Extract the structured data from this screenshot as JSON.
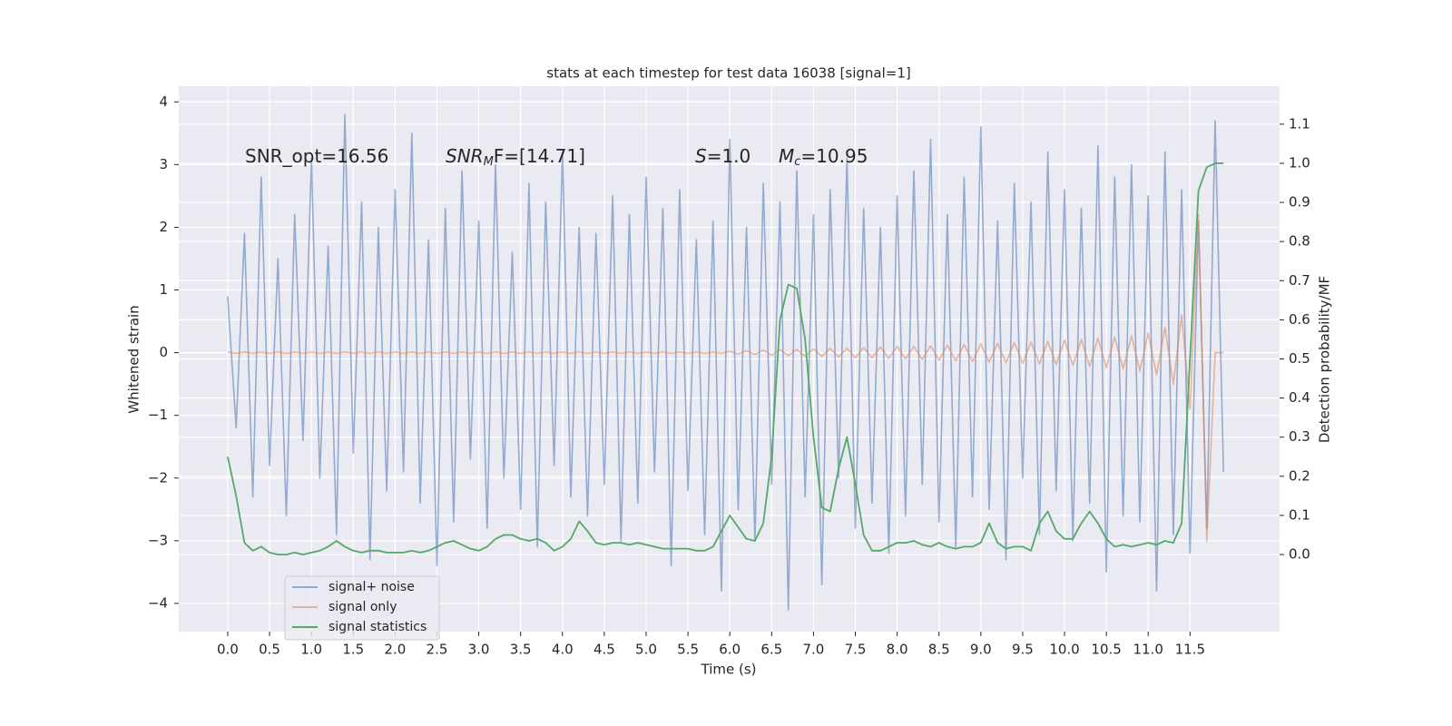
{
  "chart_data": {
    "type": "line",
    "title": "stats at each timestep for test data 16038 [signal=1]",
    "xlabel": "Time (s)",
    "ylabel": "Whitened strain",
    "y2label": "Detection probability/MF",
    "annotations": [
      {
        "text": "SNR_opt=16.56"
      },
      {
        "base": "SNR",
        "sub": "M",
        "text": "F=[14.71]"
      },
      {
        "base": "S",
        "text": "=1.0"
      },
      {
        "base": "M",
        "sub": "c",
        "text": "=10.95"
      }
    ],
    "x": [
      0.0,
      0.1,
      0.2,
      0.3,
      0.4,
      0.5,
      0.6,
      0.7,
      0.8,
      0.9,
      1.0,
      1.1,
      1.2,
      1.3,
      1.4,
      1.5,
      1.6,
      1.7,
      1.8,
      1.9,
      2.0,
      2.1,
      2.2,
      2.3,
      2.4,
      2.5,
      2.6,
      2.7,
      2.8,
      2.9,
      3.0,
      3.1,
      3.2,
      3.3,
      3.4,
      3.5,
      3.6,
      3.7,
      3.8,
      3.9,
      4.0,
      4.1,
      4.2,
      4.3,
      4.4,
      4.5,
      4.6,
      4.7,
      4.8,
      4.9,
      5.0,
      5.1,
      5.2,
      5.3,
      5.4,
      5.5,
      5.6,
      5.7,
      5.8,
      5.9,
      6.0,
      6.1,
      6.2,
      6.3,
      6.4,
      6.5,
      6.6,
      6.7,
      6.8,
      6.9,
      7.0,
      7.1,
      7.2,
      7.3,
      7.4,
      7.5,
      7.6,
      7.7,
      7.8,
      7.9,
      8.0,
      8.1,
      8.2,
      8.3,
      8.4,
      8.5,
      8.6,
      8.7,
      8.8,
      8.9,
      9.0,
      9.1,
      9.2,
      9.3,
      9.4,
      9.5,
      9.6,
      9.7,
      9.8,
      9.9,
      10.0,
      10.1,
      10.2,
      10.3,
      10.4,
      10.5,
      10.6,
      10.7,
      10.8,
      10.9,
      11.0,
      11.1,
      11.2,
      11.3,
      11.4,
      11.5,
      11.6,
      11.7,
      11.8,
      11.9
    ],
    "series": [
      {
        "name": "signal+ noise",
        "color": "#4c72b0",
        "values": [
          0.9,
          -1.2,
          1.9,
          -2.3,
          2.8,
          -1.8,
          1.5,
          -2.6,
          2.2,
          -1.4,
          3.1,
          -2.0,
          1.7,
          -2.9,
          3.8,
          -1.6,
          2.4,
          -3.3,
          2.0,
          -2.2,
          2.6,
          -1.9,
          3.5,
          -2.4,
          1.8,
          -3.4,
          2.3,
          -2.7,
          2.9,
          -1.7,
          2.1,
          -2.8,
          3.0,
          -2.0,
          1.6,
          -2.5,
          2.7,
          -3.1,
          2.4,
          -1.8,
          3.2,
          -2.3,
          2.0,
          -2.6,
          1.9,
          -2.1,
          2.5,
          -3.0,
          2.2,
          -2.4,
          2.8,
          -1.9,
          2.3,
          -3.4,
          2.6,
          -2.2,
          1.8,
          -2.9,
          2.1,
          -3.8,
          3.4,
          -2.5,
          2.0,
          -3.0,
          2.7,
          -2.1,
          2.4,
          -4.1,
          2.9,
          -2.3,
          2.2,
          -3.7,
          2.6,
          -2.0,
          3.1,
          -2.8,
          2.3,
          -2.4,
          2.0,
          -3.2,
          2.5,
          -2.6,
          2.9,
          -2.1,
          3.4,
          -2.7,
          2.2,
          -3.1,
          2.8,
          -2.3,
          3.6,
          -2.5,
          2.1,
          -3.3,
          2.7,
          -2.0,
          2.4,
          -2.9,
          3.2,
          -2.2,
          2.6,
          -3.0,
          2.3,
          -2.4,
          3.3,
          -3.5,
          2.8,
          -2.6,
          3.0,
          -2.7,
          2.5,
          -3.8,
          3.2,
          -2.9,
          2.6,
          -3.2,
          2.1,
          -2.8,
          3.7,
          -1.9
        ]
      },
      {
        "name": "signal only",
        "color": "#dd8452",
        "values": [
          0.01,
          -0.01,
          0.01,
          -0.01,
          0.01,
          -0.01,
          0.01,
          -0.01,
          0.01,
          -0.01,
          0.01,
          -0.01,
          0.01,
          -0.01,
          0.01,
          -0.01,
          0.01,
          -0.01,
          0.01,
          -0.01,
          0.01,
          -0.01,
          0.01,
          -0.01,
          0.01,
          -0.01,
          0.01,
          -0.01,
          0.01,
          -0.01,
          0.01,
          -0.01,
          0.01,
          -0.01,
          0.01,
          -0.01,
          0.01,
          -0.01,
          0.01,
          -0.01,
          0.01,
          -0.01,
          0.01,
          -0.01,
          0.01,
          -0.01,
          0.01,
          -0.01,
          0.01,
          -0.01,
          0.01,
          -0.01,
          0.01,
          -0.01,
          0.01,
          -0.01,
          0.01,
          -0.01,
          0.01,
          -0.01,
          0.02,
          -0.02,
          0.03,
          -0.03,
          0.04,
          -0.04,
          0.05,
          -0.05,
          0.05,
          -0.06,
          0.06,
          -0.06,
          0.07,
          -0.07,
          0.07,
          -0.08,
          0.08,
          -0.08,
          0.09,
          -0.09,
          0.1,
          -0.1,
          0.1,
          -0.11,
          0.11,
          -0.12,
          0.12,
          -0.13,
          0.13,
          -0.14,
          0.14,
          -0.15,
          0.15,
          -0.16,
          0.16,
          -0.17,
          0.17,
          -0.18,
          0.18,
          -0.19,
          0.2,
          -0.2,
          0.21,
          -0.22,
          0.23,
          -0.24,
          0.25,
          -0.26,
          0.27,
          -0.29,
          0.31,
          -0.35,
          0.4,
          -0.5,
          0.6,
          -0.9,
          2.2,
          -3.0,
          0.0,
          0.0
        ]
      },
      {
        "name": "signal statistics",
        "color": "#55a868",
        "axis": "y2",
        "values": [
          0.25,
          0.15,
          0.03,
          0.01,
          0.02,
          0.005,
          0.0,
          0.0,
          0.005,
          0.0,
          0.005,
          0.01,
          0.02,
          0.035,
          0.02,
          0.01,
          0.005,
          0.01,
          0.01,
          0.005,
          0.005,
          0.005,
          0.01,
          0.005,
          0.01,
          0.02,
          0.03,
          0.035,
          0.025,
          0.015,
          0.01,
          0.02,
          0.04,
          0.05,
          0.05,
          0.04,
          0.035,
          0.04,
          0.03,
          0.01,
          0.02,
          0.04,
          0.085,
          0.06,
          0.03,
          0.025,
          0.03,
          0.03,
          0.025,
          0.03,
          0.025,
          0.02,
          0.015,
          0.015,
          0.015,
          0.015,
          0.01,
          0.01,
          0.02,
          0.06,
          0.1,
          0.07,
          0.04,
          0.035,
          0.08,
          0.25,
          0.6,
          0.69,
          0.68,
          0.55,
          0.3,
          0.12,
          0.11,
          0.22,
          0.3,
          0.18,
          0.05,
          0.01,
          0.01,
          0.02,
          0.03,
          0.03,
          0.035,
          0.025,
          0.02,
          0.03,
          0.02,
          0.015,
          0.02,
          0.02,
          0.03,
          0.08,
          0.03,
          0.015,
          0.02,
          0.02,
          0.01,
          0.08,
          0.11,
          0.06,
          0.04,
          0.04,
          0.08,
          0.11,
          0.08,
          0.04,
          0.02,
          0.025,
          0.02,
          0.025,
          0.03,
          0.025,
          0.035,
          0.03,
          0.08,
          0.5,
          0.93,
          0.99,
          1.0,
          1.0
        ]
      }
    ],
    "xlim": [
      -0.585,
      12.57
    ],
    "xticks": [
      {
        "value": 0,
        "label": "0.0"
      },
      {
        "value": 0.5,
        "label": "0.5"
      },
      {
        "value": 1,
        "label": "1.0"
      },
      {
        "value": 1.5,
        "label": "1.5"
      },
      {
        "value": 2,
        "label": "2.0"
      },
      {
        "value": 2.5,
        "label": "2.5"
      },
      {
        "value": 3,
        "label": "3.0"
      },
      {
        "value": 3.5,
        "label": "3.5"
      },
      {
        "value": 4,
        "label": "4.0"
      },
      {
        "value": 4.5,
        "label": "4.5"
      },
      {
        "value": 5,
        "label": "5.0"
      },
      {
        "value": 5.5,
        "label": "5.5"
      },
      {
        "value": 6,
        "label": "6.0"
      },
      {
        "value": 6.5,
        "label": "6.5"
      },
      {
        "value": 7,
        "label": "7.0"
      },
      {
        "value": 7.5,
        "label": "7.5"
      },
      {
        "value": 8,
        "label": "8.0"
      },
      {
        "value": 8.5,
        "label": "8.5"
      },
      {
        "value": 9,
        "label": "9.0"
      },
      {
        "value": 9.5,
        "label": "9.5"
      },
      {
        "value": 10,
        "label": "10.0"
      },
      {
        "value": 10.5,
        "label": "10.5"
      },
      {
        "value": 11,
        "label": "11.0"
      },
      {
        "value": 11.5,
        "label": "11.5"
      }
    ],
    "ylim": [
      -4.45,
      4.25
    ],
    "yticks": [
      {
        "value": -4,
        "label": "−4"
      },
      {
        "value": -3,
        "label": "−3"
      },
      {
        "value": -2,
        "label": "−2"
      },
      {
        "value": -1,
        "label": "−1"
      },
      0,
      1,
      2,
      3,
      4
    ],
    "y2lim": [
      -0.197,
      1.197
    ],
    "y2ticks": [
      {
        "value": 0,
        "label": "0.0"
      },
      {
        "value": 0.1,
        "label": "0.1"
      },
      {
        "value": 0.2,
        "label": "0.2"
      },
      {
        "value": 0.3,
        "label": "0.3"
      },
      {
        "value": 0.4,
        "label": "0.4"
      },
      {
        "value": 0.5,
        "label": "0.5"
      },
      {
        "value": 0.6,
        "label": "0.6"
      },
      {
        "value": 0.7,
        "label": "0.7"
      },
      {
        "value": 0.8,
        "label": "0.8"
      },
      {
        "value": 0.9,
        "label": "0.9"
      },
      {
        "value": 1,
        "label": "1.0"
      },
      {
        "value": 1.1,
        "label": "1.1"
      }
    ],
    "grid": true,
    "legend": "lower left"
  }
}
